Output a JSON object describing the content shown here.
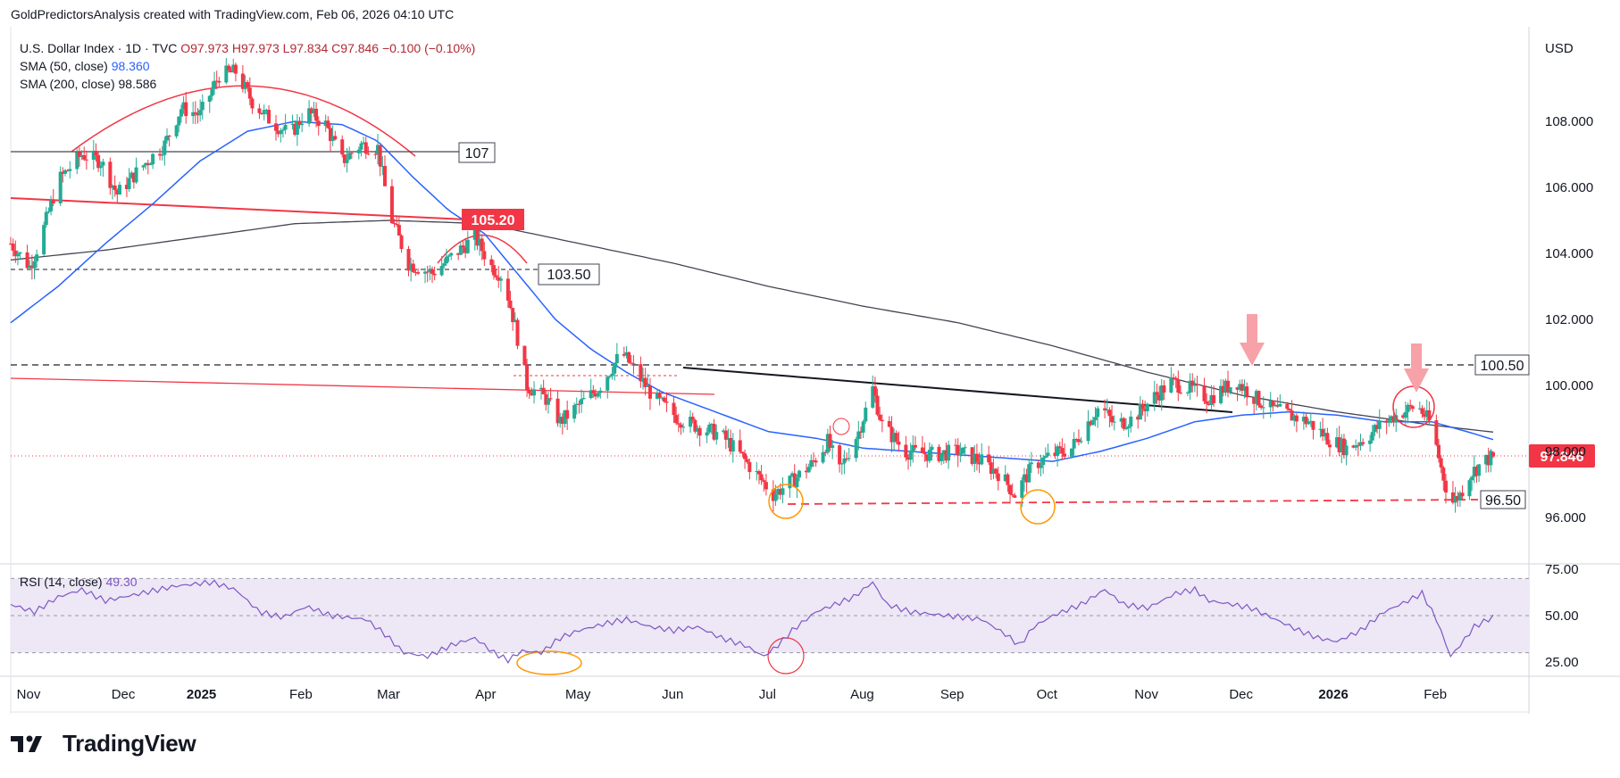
{
  "header": {
    "text": "GoldPredictorsAnalysis created with TradingView.com, Feb 06, 2026 04:10 UTC"
  },
  "legend": {
    "symbol": "U.S. Dollar Index · 1D · TVC",
    "ohlc": "O97.973 H97.973 L97.834 C97.846 −0.100 (−0.10%)",
    "sma50_label": "SMA (50, close)",
    "sma50_value": "98.360",
    "sma200_label": "SMA (200, close)",
    "sma200_value": "98.586",
    "rsi_label": "RSI (14, close)",
    "rsi_value": "49.30"
  },
  "currency": "USD",
  "brand": "TradingView",
  "colors": {
    "up": "#22ab94",
    "down": "#f23645",
    "sma50": "#2962ff",
    "sma200": "#434651",
    "rsi": "#7e57c2",
    "rsi_band": "#ede7f6",
    "red_line": "#f23645",
    "orange": "#ff9800"
  },
  "chart_data": [
    {
      "type": "candlestick",
      "title": "U.S. Dollar Index · 1D · TVC",
      "x_ticks": [
        "Nov",
        "Dec",
        "2025",
        "Feb",
        "Mar",
        "Apr",
        "May",
        "Jun",
        "Jul",
        "Aug",
        "Sep",
        "Oct",
        "Nov",
        "Dec",
        "2026",
        "Feb"
      ],
      "y_ticks": [
        "96.000",
        "98.000",
        "100.000",
        "102.000",
        "104.000",
        "106.000",
        "108.000"
      ],
      "ylim": [
        94.6,
        110.3
      ],
      "last_price": "97.846",
      "last_ohlc": {
        "open": 97.973,
        "high": 97.973,
        "low": 97.834,
        "close": 97.846,
        "change": -0.1,
        "change_pct": -0.1
      },
      "price_path": [
        [
          0,
          104.3
        ],
        [
          8,
          103.6
        ],
        [
          12,
          104.3
        ],
        [
          20,
          106.2
        ],
        [
          30,
          107.0
        ],
        [
          38,
          106.8
        ],
        [
          45,
          105.8
        ],
        [
          55,
          106.6
        ],
        [
          65,
          107.3
        ],
        [
          72,
          108.4
        ],
        [
          80,
          108.2
        ],
        [
          88,
          109.4
        ],
        [
          95,
          109.5
        ],
        [
          102,
          108.6
        ],
        [
          110,
          108.0
        ],
        [
          118,
          107.6
        ],
        [
          125,
          108.3
        ],
        [
          133,
          107.9
        ],
        [
          140,
          106.8
        ],
        [
          148,
          107.3
        ],
        [
          155,
          107.2
        ],
        [
          160,
          105.2
        ],
        [
          168,
          103.7
        ],
        [
          178,
          103.4
        ],
        [
          188,
          104.0
        ],
        [
          196,
          104.5
        ],
        [
          203,
          103.6
        ],
        [
          208,
          103.3
        ],
        [
          213,
          101.8
        ],
        [
          218,
          100.0
        ],
        [
          226,
          99.6
        ],
        [
          232,
          98.9
        ],
        [
          240,
          99.4
        ],
        [
          248,
          99.9
        ],
        [
          258,
          101.0
        ],
        [
          265,
          100.3
        ],
        [
          272,
          99.6
        ],
        [
          282,
          99.0
        ],
        [
          292,
          98.7
        ],
        [
          300,
          98.5
        ],
        [
          308,
          97.9
        ],
        [
          315,
          97.3
        ],
        [
          322,
          96.7
        ],
        [
          330,
          97.1
        ],
        [
          338,
          97.6
        ],
        [
          345,
          98.3
        ],
        [
          350,
          97.4
        ],
        [
          358,
          98.6
        ],
        [
          364,
          99.9
        ],
        [
          368,
          98.8
        ],
        [
          378,
          98.0
        ],
        [
          390,
          97.9
        ],
        [
          400,
          98.0
        ],
        [
          410,
          97.7
        ],
        [
          418,
          97.3
        ],
        [
          424,
          96.7
        ],
        [
          432,
          97.6
        ],
        [
          440,
          97.9
        ],
        [
          448,
          98.1
        ],
        [
          455,
          98.9
        ],
        [
          460,
          99.4
        ],
        [
          466,
          98.8
        ],
        [
          474,
          99.0
        ],
        [
          482,
          99.6
        ],
        [
          490,
          100.1
        ],
        [
          498,
          99.9
        ],
        [
          506,
          99.6
        ],
        [
          512,
          99.9
        ],
        [
          518,
          100.1
        ],
        [
          524,
          99.7
        ],
        [
          532,
          99.3
        ],
        [
          540,
          99.1
        ],
        [
          548,
          98.9
        ],
        [
          556,
          98.4
        ],
        [
          564,
          98.1
        ],
        [
          572,
          98.4
        ],
        [
          580,
          98.9
        ],
        [
          588,
          99.2
        ],
        [
          594,
          99.4
        ],
        [
          600,
          98.8
        ],
        [
          604,
          97.5
        ],
        [
          608,
          96.4
        ],
        [
          612,
          96.7
        ],
        [
          616,
          97.3
        ],
        [
          622,
          97.7
        ],
        [
          626,
          97.846
        ]
      ],
      "sma50": [
        [
          0,
          101.9
        ],
        [
          20,
          103.0
        ],
        [
          40,
          104.3
        ],
        [
          60,
          105.5
        ],
        [
          80,
          106.8
        ],
        [
          100,
          107.7
        ],
        [
          120,
          108.0
        ],
        [
          140,
          107.9
        ],
        [
          155,
          107.4
        ],
        [
          170,
          106.3
        ],
        [
          185,
          105.3
        ],
        [
          200,
          104.6
        ],
        [
          215,
          103.3
        ],
        [
          230,
          102.0
        ],
        [
          245,
          101.1
        ],
        [
          260,
          100.4
        ],
        [
          275,
          99.8
        ],
        [
          290,
          99.4
        ],
        [
          305,
          99.0
        ],
        [
          320,
          98.6
        ],
        [
          340,
          98.4
        ],
        [
          360,
          98.1
        ],
        [
          380,
          98.0
        ],
        [
          400,
          97.9
        ],
        [
          420,
          97.8
        ],
        [
          440,
          97.7
        ],
        [
          460,
          98.0
        ],
        [
          480,
          98.4
        ],
        [
          500,
          98.9
        ],
        [
          520,
          99.1
        ],
        [
          540,
          99.2
        ],
        [
          560,
          99.1
        ],
        [
          580,
          98.9
        ],
        [
          600,
          98.9
        ],
        [
          615,
          98.6
        ],
        [
          626,
          98.36
        ]
      ],
      "sma200": [
        [
          0,
          103.8
        ],
        [
          40,
          104.1
        ],
        [
          80,
          104.5
        ],
        [
          120,
          104.9
        ],
        [
          160,
          105.0
        ],
        [
          200,
          104.9
        ],
        [
          240,
          104.3
        ],
        [
          280,
          103.7
        ],
        [
          320,
          103.0
        ],
        [
          360,
          102.4
        ],
        [
          400,
          101.9
        ],
        [
          440,
          101.2
        ],
        [
          480,
          100.4
        ],
        [
          520,
          99.7
        ],
        [
          560,
          99.2
        ],
        [
          600,
          98.8
        ],
        [
          626,
          98.586
        ]
      ],
      "levels": [
        {
          "label": "107",
          "value": 107.0
        },
        {
          "label": "105.20",
          "value": 105.2
        },
        {
          "label": "103.50",
          "value": 103.5
        },
        {
          "label": "100.50",
          "value": 100.5
        },
        {
          "label": "96.50",
          "value": 96.5
        }
      ]
    },
    {
      "type": "line",
      "title": "RSI (14, close)",
      "y_ticks": [
        "25.00",
        "50.00",
        "75.00"
      ],
      "ylim": [
        20,
        80
      ],
      "band": [
        30,
        70
      ],
      "last_value": "49.30",
      "values": [
        [
          0,
          56
        ],
        [
          10,
          52
        ],
        [
          20,
          60
        ],
        [
          30,
          64
        ],
        [
          40,
          58
        ],
        [
          55,
          62
        ],
        [
          70,
          66
        ],
        [
          85,
          68
        ],
        [
          95,
          64
        ],
        [
          105,
          52
        ],
        [
          115,
          49
        ],
        [
          125,
          55
        ],
        [
          135,
          50
        ],
        [
          150,
          48
        ],
        [
          158,
          40
        ],
        [
          166,
          30
        ],
        [
          176,
          28
        ],
        [
          186,
          34
        ],
        [
          196,
          38
        ],
        [
          204,
          30
        ],
        [
          210,
          26
        ],
        [
          216,
          31
        ],
        [
          224,
          30
        ],
        [
          232,
          38
        ],
        [
          240,
          42
        ],
        [
          252,
          46
        ],
        [
          260,
          48
        ],
        [
          270,
          44
        ],
        [
          280,
          42
        ],
        [
          290,
          44
        ],
        [
          300,
          38
        ],
        [
          310,
          34
        ],
        [
          318,
          28
        ],
        [
          324,
          34
        ],
        [
          330,
          42
        ],
        [
          340,
          52
        ],
        [
          348,
          56
        ],
        [
          356,
          60
        ],
        [
          364,
          68
        ],
        [
          370,
          56
        ],
        [
          380,
          52
        ],
        [
          395,
          50
        ],
        [
          410,
          48
        ],
        [
          420,
          40
        ],
        [
          426,
          34
        ],
        [
          432,
          44
        ],
        [
          440,
          50
        ],
        [
          452,
          56
        ],
        [
          462,
          64
        ],
        [
          470,
          56
        ],
        [
          480,
          54
        ],
        [
          492,
          62
        ],
        [
          500,
          64
        ],
        [
          506,
          58
        ],
        [
          516,
          56
        ],
        [
          524,
          54
        ],
        [
          534,
          48
        ],
        [
          544,
          42
        ],
        [
          552,
          38
        ],
        [
          560,
          36
        ],
        [
          570,
          42
        ],
        [
          580,
          52
        ],
        [
          590,
          58
        ],
        [
          596,
          62
        ],
        [
          602,
          48
        ],
        [
          608,
          28
        ],
        [
          612,
          34
        ],
        [
          618,
          44
        ],
        [
          626,
          49.3
        ]
      ]
    }
  ]
}
